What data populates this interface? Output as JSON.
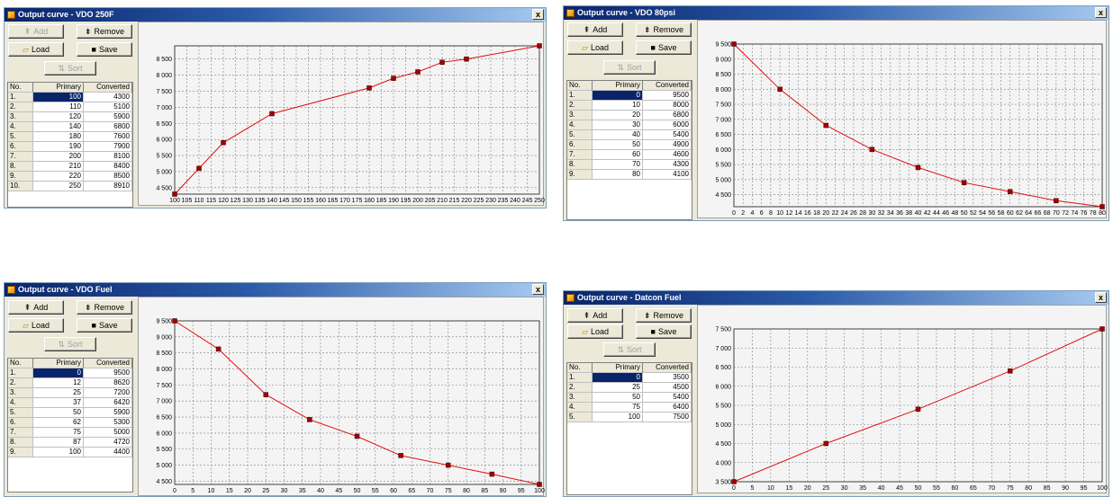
{
  "ui": {
    "add_label": "Add",
    "remove_label": "Remove",
    "load_label": "Load",
    "save_label": "Save",
    "sort_label": "Sort",
    "col_no": "No.",
    "col_primary": "Primary",
    "col_converted": "Converted",
    "close_glyph": "x",
    "colors": {
      "curve": "#e01010",
      "marker": "#a00000",
      "selection": "#0a246a",
      "titlebar": "#0a246a"
    }
  },
  "windows": [
    {
      "title": "Output curve - VDO 250F",
      "add_enabled": false,
      "rows": [
        {
          "no": "1.",
          "primary": "100",
          "converted": "4300"
        },
        {
          "no": "2.",
          "primary": "110",
          "converted": "5100"
        },
        {
          "no": "3.",
          "primary": "120",
          "converted": "5900"
        },
        {
          "no": "4.",
          "primary": "140",
          "converted": "6800"
        },
        {
          "no": "5.",
          "primary": "180",
          "converted": "7600"
        },
        {
          "no": "6.",
          "primary": "190",
          "converted": "7900"
        },
        {
          "no": "7.",
          "primary": "200",
          "converted": "8100"
        },
        {
          "no": "8.",
          "primary": "210",
          "converted": "8400"
        },
        {
          "no": "9.",
          "primary": "220",
          "converted": "8500"
        },
        {
          "no": "10.",
          "primary": "250",
          "converted": "8910"
        }
      ]
    },
    {
      "title": "Output curve - VDO 80psi",
      "add_enabled": true,
      "rows": [
        {
          "no": "1.",
          "primary": "0",
          "converted": "9500"
        },
        {
          "no": "2.",
          "primary": "10",
          "converted": "8000"
        },
        {
          "no": "3.",
          "primary": "20",
          "converted": "6800"
        },
        {
          "no": "4.",
          "primary": "30",
          "converted": "6000"
        },
        {
          "no": "5.",
          "primary": "40",
          "converted": "5400"
        },
        {
          "no": "6.",
          "primary": "50",
          "converted": "4900"
        },
        {
          "no": "7.",
          "primary": "60",
          "converted": "4600"
        },
        {
          "no": "8.",
          "primary": "70",
          "converted": "4300"
        },
        {
          "no": "9.",
          "primary": "80",
          "converted": "4100"
        }
      ]
    },
    {
      "title": "Output curve - VDO Fuel",
      "add_enabled": true,
      "rows": [
        {
          "no": "1.",
          "primary": "0",
          "converted": "9500"
        },
        {
          "no": "2.",
          "primary": "12",
          "converted": "8620"
        },
        {
          "no": "3.",
          "primary": "25",
          "converted": "7200"
        },
        {
          "no": "4.",
          "primary": "37",
          "converted": "6420"
        },
        {
          "no": "5.",
          "primary": "50",
          "converted": "5900"
        },
        {
          "no": "6.",
          "primary": "62",
          "converted": "5300"
        },
        {
          "no": "7.",
          "primary": "75",
          "converted": "5000"
        },
        {
          "no": "8.",
          "primary": "87",
          "converted": "4720"
        },
        {
          "no": "9.",
          "primary": "100",
          "converted": "4400"
        }
      ]
    },
    {
      "title": "Output curve - Datcon Fuel",
      "add_enabled": true,
      "rows": [
        {
          "no": "1.",
          "primary": "0",
          "converted": "3500"
        },
        {
          "no": "2.",
          "primary": "25",
          "converted": "4500"
        },
        {
          "no": "3.",
          "primary": "50",
          "converted": "5400"
        },
        {
          "no": "4.",
          "primary": "75",
          "converted": "6400"
        },
        {
          "no": "5.",
          "primary": "100",
          "converted": "7500"
        }
      ]
    }
  ],
  "chart_data": [
    {
      "type": "line",
      "title": "",
      "x": [
        100,
        110,
        120,
        140,
        180,
        190,
        200,
        210,
        220,
        250
      ],
      "series": [
        {
          "values": [
            4300,
            5100,
            5900,
            6800,
            7600,
            7900,
            8100,
            8400,
            8500,
            8910
          ]
        }
      ],
      "xlim": [
        100,
        250
      ],
      "xtick_step": 5,
      "ylim": [
        4300,
        8910
      ],
      "yticks": [
        4500,
        5000,
        5500,
        6000,
        6500,
        7000,
        7500,
        8000,
        8500
      ],
      "grid": true
    },
    {
      "type": "line",
      "title": "",
      "x": [
        0,
        10,
        20,
        30,
        40,
        50,
        60,
        70,
        80
      ],
      "series": [
        {
          "values": [
            9500,
            8000,
            6800,
            6000,
            5400,
            4900,
            4600,
            4300,
            4100
          ]
        }
      ],
      "xlim": [
        0,
        80
      ],
      "xtick_step": 2,
      "ylim": [
        4100,
        9500
      ],
      "yticks": [
        4500,
        5000,
        5500,
        6000,
        6500,
        7000,
        7500,
        8000,
        8500,
        9000,
        9500
      ],
      "grid": true
    },
    {
      "type": "line",
      "title": "",
      "x": [
        0,
        12,
        25,
        37,
        50,
        62,
        75,
        87,
        100
      ],
      "series": [
        {
          "values": [
            9500,
            8620,
            7200,
            6420,
            5900,
            5300,
            5000,
            4720,
            4400
          ]
        }
      ],
      "xlim": [
        0,
        100
      ],
      "xtick_step": 5,
      "ylim": [
        4400,
        9500
      ],
      "yticks": [
        4500,
        5000,
        5500,
        6000,
        6500,
        7000,
        7500,
        8000,
        8500,
        9000,
        9500
      ],
      "grid": true
    },
    {
      "type": "line",
      "title": "",
      "x": [
        0,
        25,
        50,
        75,
        100
      ],
      "series": [
        {
          "values": [
            3500,
            4500,
            5400,
            6400,
            7500
          ]
        }
      ],
      "xlim": [
        0,
        100
      ],
      "xtick_step": 5,
      "ylim": [
        3500,
        7500
      ],
      "yticks": [
        3500,
        4000,
        4500,
        5000,
        5500,
        6000,
        6500,
        7000,
        7500
      ],
      "grid": true
    }
  ]
}
